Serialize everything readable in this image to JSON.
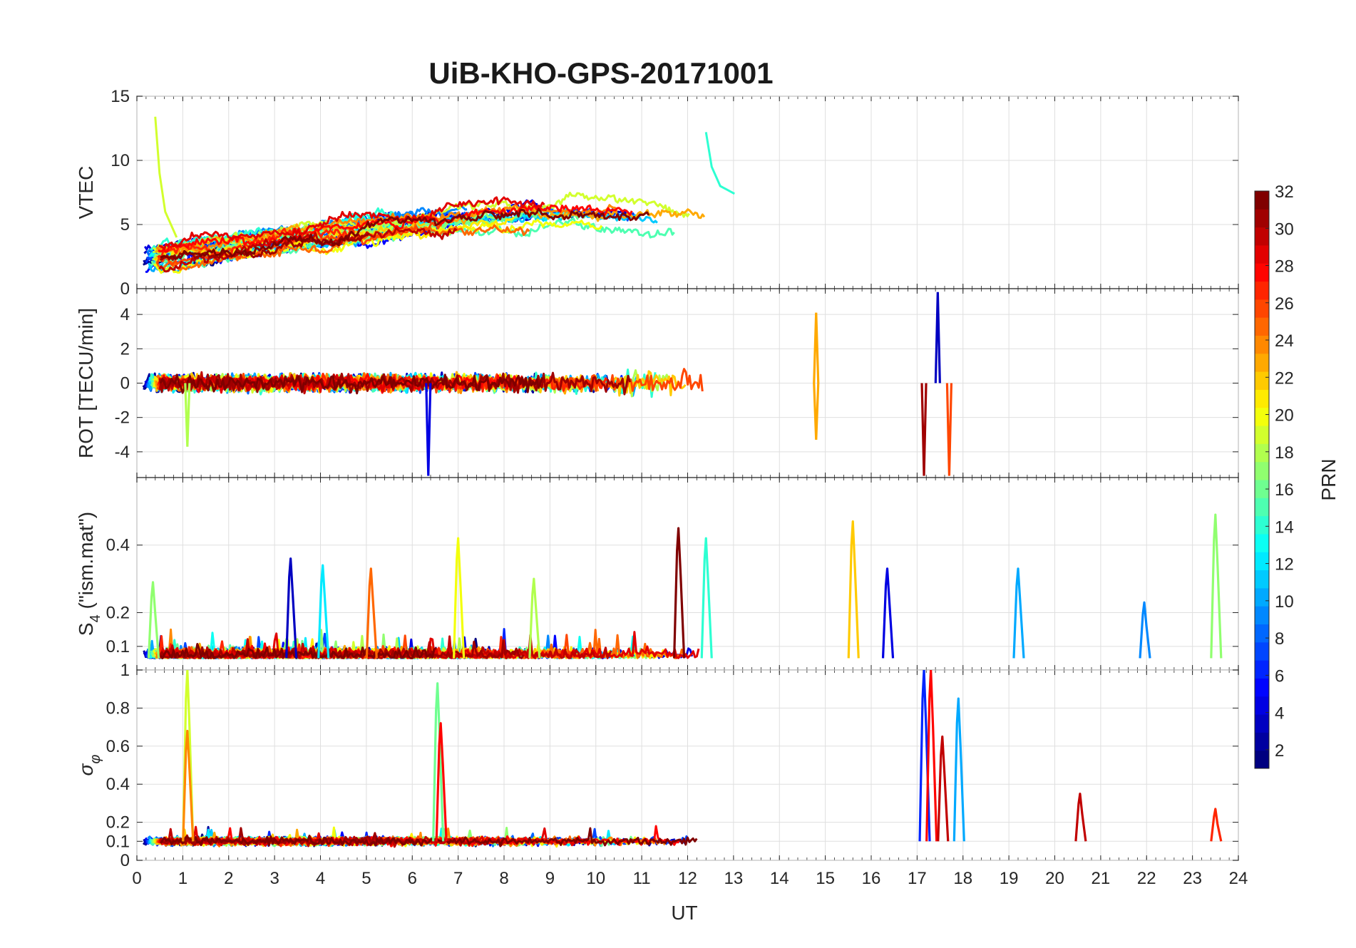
{
  "chart_data": {
    "type": "line",
    "title": "UiB-KHO-GPS-20171001",
    "xlabel": "UT",
    "xlim": [
      0,
      24
    ],
    "xticks": [
      "0",
      "1",
      "2",
      "3",
      "4",
      "5",
      "6",
      "7",
      "8",
      "9",
      "10",
      "11",
      "12",
      "13",
      "14",
      "15",
      "16",
      "17",
      "18",
      "19",
      "20",
      "21",
      "22",
      "23",
      "24"
    ],
    "grid": true,
    "panels": [
      {
        "ylabel": "VTEC",
        "ylim": [
          0,
          15
        ],
        "yticks": [
          "0",
          "5",
          "10",
          "15"
        ],
        "baseline": 4.2,
        "noise": 1.2,
        "shape": "vtec"
      },
      {
        "ylabel": "ROT [TECU/min]",
        "ylim": [
          -5.5,
          5.5
        ],
        "yticks": [
          "-4",
          "-2",
          "0",
          "2",
          "4"
        ],
        "baseline": 0,
        "noise": 0.35,
        "shape": "rot"
      },
      {
        "ylabel": "S",
        "ylabel_sub": "4",
        "ylabel_rest": " (\"ism.mat\")",
        "ylim": [
          0.03,
          0.6
        ],
        "yticks": [
          "0.1",
          "0.2",
          "0.4"
        ],
        "baseline": 0.065,
        "noise": 0.02,
        "shape": "s4",
        "spikes": [
          {
            "x": 0.35,
            "y": 0.29,
            "prn": 17
          },
          {
            "x": 3.35,
            "y": 0.36,
            "prn": 3
          },
          {
            "x": 4.05,
            "y": 0.34,
            "prn": 12
          },
          {
            "x": 5.1,
            "y": 0.33,
            "prn": 25
          },
          {
            "x": 7.0,
            "y": 0.42,
            "prn": 20
          },
          {
            "x": 8.65,
            "y": 0.3,
            "prn": 18
          },
          {
            "x": 11.8,
            "y": 0.45,
            "prn": 32
          },
          {
            "x": 12.4,
            "y": 0.42,
            "prn": 14
          },
          {
            "x": 15.6,
            "y": 0.47,
            "prn": 22
          },
          {
            "x": 16.35,
            "y": 0.33,
            "prn": 4
          },
          {
            "x": 19.2,
            "y": 0.33,
            "prn": 10
          },
          {
            "x": 21.95,
            "y": 0.23,
            "prn": 9
          },
          {
            "x": 23.5,
            "y": 0.49,
            "prn": 17
          }
        ]
      },
      {
        "ylabel": "σ",
        "ylabel_sub": "φ",
        "ylabel_rest": "",
        "ylim": [
          0,
          1
        ],
        "yticks": [
          "0",
          "0.1",
          "0.2",
          "0.4",
          "0.6",
          "0.8",
          "1"
        ],
        "baseline": 0.1,
        "noise": 0.015,
        "shape": "sigma",
        "spikes": [
          {
            "x": 1.1,
            "y": 1.0,
            "prn": 19
          },
          {
            "x": 1.1,
            "y": 0.68,
            "prn": 24
          },
          {
            "x": 6.55,
            "y": 0.93,
            "prn": 16
          },
          {
            "x": 6.62,
            "y": 0.72,
            "prn": 28
          },
          {
            "x": 17.15,
            "y": 1.0,
            "prn": 6
          },
          {
            "x": 17.3,
            "y": 1.0,
            "prn": 28
          },
          {
            "x": 17.55,
            "y": 0.65,
            "prn": 30
          },
          {
            "x": 17.9,
            "y": 0.85,
            "prn": 10
          },
          {
            "x": 20.55,
            "y": 0.35,
            "prn": 30
          },
          {
            "x": 23.5,
            "y": 0.27,
            "prn": 27
          }
        ]
      }
    ],
    "colorbar": {
      "label": "PRN",
      "range": [
        1,
        32
      ],
      "ticks": [
        "2",
        "4",
        "6",
        "8",
        "10",
        "12",
        "14",
        "16",
        "18",
        "20",
        "22",
        "24",
        "26",
        "28",
        "30",
        "32"
      ],
      "colormap": "jet"
    },
    "series": [
      {
        "prn": 1
      },
      {
        "prn": 2
      },
      {
        "prn": 3
      },
      {
        "prn": 4
      },
      {
        "prn": 5
      },
      {
        "prn": 6
      },
      {
        "prn": 7
      },
      {
        "prn": 8
      },
      {
        "prn": 9
      },
      {
        "prn": 10
      },
      {
        "prn": 11
      },
      {
        "prn": 12
      },
      {
        "prn": 13
      },
      {
        "prn": 14
      },
      {
        "prn": 15
      },
      {
        "prn": 16
      },
      {
        "prn": 17
      },
      {
        "prn": 18
      },
      {
        "prn": 19
      },
      {
        "prn": 20
      },
      {
        "prn": 21
      },
      {
        "prn": 22
      },
      {
        "prn": 23
      },
      {
        "prn": 24
      },
      {
        "prn": 25
      },
      {
        "prn": 26
      },
      {
        "prn": 27
      },
      {
        "prn": 28
      },
      {
        "prn": 29
      },
      {
        "prn": 30
      },
      {
        "prn": 31
      },
      {
        "prn": 32
      }
    ]
  }
}
